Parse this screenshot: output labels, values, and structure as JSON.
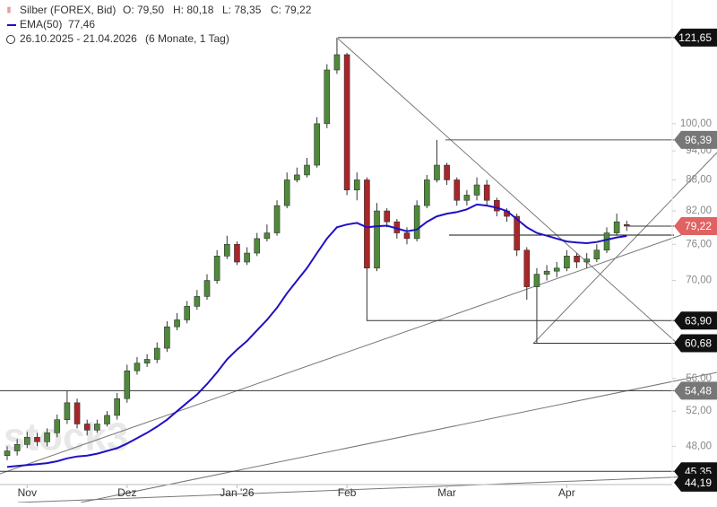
{
  "chart_data": {
    "type": "candlestick",
    "title": "Silber (FOREX, Bid)",
    "ohlc_labels": [
      "O: 79,50",
      "H: 80,18",
      "L: 78,35",
      "C: 79,22"
    ],
    "subtitle": "26.10.2025 - 21.04.2026",
    "period": "(6 Monate, 1 Tag)",
    "watermark": "stock3",
    "log_scale": true,
    "ylim": [
      44,
      132.5
    ],
    "yticks": [
      {
        "value": 100,
        "label": "100,00"
      },
      {
        "value": 94,
        "label": "94,00"
      },
      {
        "value": 88,
        "label": "88,00"
      },
      {
        "value": 82,
        "label": "82,00"
      },
      {
        "value": 76,
        "label": "76,00"
      },
      {
        "value": 70,
        "label": "70,00"
      },
      {
        "value": 56,
        "label": "56,00"
      },
      {
        "value": 52,
        "label": "52,00"
      },
      {
        "value": 48,
        "label": "48,00"
      }
    ],
    "xticks": [
      {
        "value": 2,
        "label": "Nov"
      },
      {
        "value": 12,
        "label": "Dez"
      },
      {
        "value": 23,
        "label": "Jan '26"
      },
      {
        "value": 34,
        "label": "Feb"
      },
      {
        "value": 44,
        "label": "Mar"
      },
      {
        "value": 56,
        "label": "Apr"
      }
    ],
    "up_color": "#4e8a3a",
    "down_color": "#a8262a",
    "open": [
      47.0,
      47.5,
      48.2,
      49.0,
      48.5,
      49.5,
      51.0,
      53.0,
      50.5,
      49.8,
      50.5,
      51.5,
      53.5,
      57.0,
      58.0,
      58.5,
      60.0,
      63.0,
      64.0,
      66.0,
      67.5,
      70.0,
      74.0,
      76.0,
      73.0,
      74.5,
      77.0,
      78.0,
      83.0,
      88.0,
      89.0,
      91.0,
      100.0,
      113.0,
      117.0,
      86.0,
      88.0,
      72.0,
      82.0,
      80.0,
      78.0,
      77.0,
      83.0,
      88.0,
      91.0,
      88.0,
      84.0,
      85.0,
      87.0,
      84.0,
      82.0,
      81.0,
      75.0,
      69.0,
      71.0,
      71.5,
      72.0,
      74.0,
      73.0,
      73.5,
      75.0,
      78.0,
      79.5
    ],
    "high": [
      48.0,
      48.8,
      49.6,
      49.5,
      50.0,
      51.6,
      54.5,
      53.5,
      51.0,
      51.0,
      52.0,
      54.2,
      57.8,
      58.8,
      59.2,
      60.8,
      63.8,
      65.0,
      66.8,
      68.5,
      71.0,
      75.0,
      77.5,
      76.5,
      75.5,
      78.0,
      79.5,
      84.0,
      89.5,
      90.5,
      92.5,
      101.5,
      114.5,
      121.65,
      117.5,
      89.5,
      88.5,
      83.5,
      82.5,
      80.5,
      79.0,
      84.0,
      89.0,
      96.39,
      91.5,
      88.5,
      86.0,
      88.5,
      88.0,
      84.5,
      82.5,
      81.5,
      75.5,
      72.0,
      72.5,
      73.0,
      75.0,
      74.5,
      74.5,
      76.0,
      79.0,
      81.5,
      80.18
    ],
    "low": [
      46.5,
      47.0,
      47.8,
      48.0,
      48.0,
      49.0,
      50.5,
      50.0,
      49.2,
      49.5,
      50.2,
      51.0,
      53.0,
      56.5,
      57.5,
      58.0,
      59.5,
      62.5,
      63.5,
      65.5,
      67.0,
      69.5,
      73.5,
      72.5,
      72.5,
      74.0,
      76.5,
      77.5,
      82.5,
      87.5,
      88.5,
      90.5,
      99.0,
      112.0,
      85.0,
      84.0,
      63.9,
      71.5,
      79.0,
      77.0,
      76.0,
      76.5,
      82.5,
      87.5,
      87.0,
      83.0,
      83.0,
      84.0,
      83.0,
      81.0,
      80.0,
      74.0,
      67.0,
      60.68,
      70.0,
      70.5,
      71.5,
      72.0,
      72.0,
      73.0,
      74.5,
      77.5,
      78.35
    ],
    "close": [
      47.5,
      48.2,
      49.0,
      48.5,
      49.5,
      51.0,
      53.0,
      50.5,
      49.8,
      50.5,
      51.5,
      53.5,
      57.0,
      58.0,
      58.5,
      60.0,
      63.0,
      64.0,
      66.0,
      67.5,
      70.0,
      74.0,
      76.0,
      73.0,
      74.5,
      77.0,
      78.0,
      83.0,
      88.0,
      89.0,
      91.0,
      100.0,
      113.0,
      117.0,
      86.0,
      88.0,
      72.0,
      82.0,
      80.0,
      78.0,
      77.0,
      83.0,
      88.0,
      91.0,
      88.0,
      84.0,
      85.0,
      87.0,
      84.0,
      82.0,
      81.0,
      75.0,
      69.0,
      71.0,
      71.5,
      72.0,
      74.0,
      73.0,
      73.5,
      75.0,
      78.0,
      80.0,
      79.22
    ],
    "series": [
      {
        "name": "EMA(50)",
        "color": "#1f10c4",
        "value_label": "77,46",
        "values": [
          45.8,
          45.9,
          46.0,
          46.1,
          46.2,
          46.4,
          46.7,
          46.9,
          47.0,
          47.2,
          47.5,
          47.8,
          48.3,
          48.9,
          49.5,
          50.2,
          51.0,
          52.0,
          53.0,
          54.0,
          55.3,
          56.8,
          58.5,
          59.8,
          61.0,
          62.5,
          64.0,
          65.8,
          68.0,
          70.0,
          72.0,
          74.5,
          77.0,
          79.0,
          79.5,
          79.8,
          79.0,
          79.2,
          79.3,
          78.8,
          78.3,
          78.6,
          80.0,
          81.0,
          81.5,
          81.8,
          82.3,
          83.2,
          83.0,
          82.6,
          82.0,
          80.5,
          79.0,
          78.0,
          77.5,
          77.0,
          76.5,
          76.3,
          76.2,
          76.4,
          76.8,
          77.2,
          77.46
        ]
      }
    ],
    "levels": [
      {
        "value": 121.65,
        "label": "121,65",
        "color": "#111111"
      },
      {
        "value": 96.39,
        "label": "96,39",
        "color": "#777777"
      },
      {
        "value": 79.22,
        "label": "79,22",
        "color": "#e06262"
      },
      {
        "value": 63.9,
        "label": "63,90",
        "color": "#111111"
      },
      {
        "value": 60.68,
        "label": "60,68",
        "color": "#111111"
      },
      {
        "value": 54.48,
        "label": "54,48",
        "color": "#777777"
      },
      {
        "value": 45.35,
        "label": "45,35",
        "color": "#111111"
      },
      {
        "value": 44.19,
        "label": "44,19",
        "color": "#111111"
      }
    ]
  }
}
